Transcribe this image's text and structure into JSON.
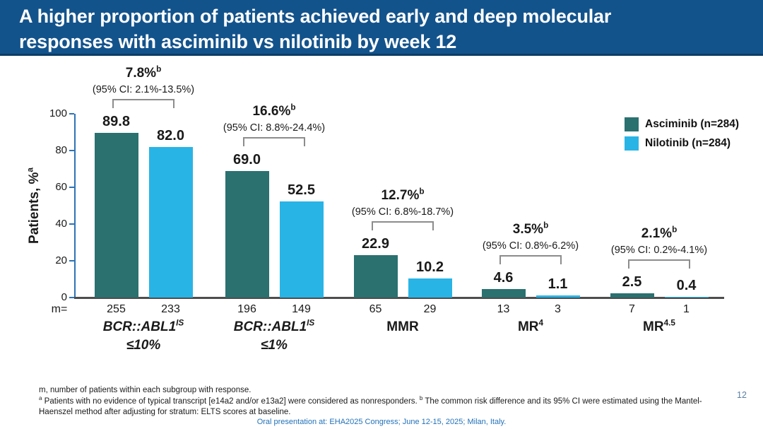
{
  "title": {
    "line1": "A higher proportion of patients achieved early and deep molecular",
    "line2": "responses with asciminib vs nilotinib by week 12"
  },
  "chart_data": {
    "type": "bar",
    "ylabel": "Patients, %",
    "ylabel_sup": "a",
    "ylim": [
      0,
      100
    ],
    "yticks": [
      0,
      20,
      40,
      60,
      80,
      100
    ],
    "grid": false,
    "legend_position": "top-right",
    "m_row_label": "m=",
    "categories": [
      {
        "line1": "BCR::ABL1",
        "line1_sup": "IS",
        "line2": "≤10%",
        "italic": true
      },
      {
        "line1": "BCR::ABL1",
        "line1_sup": "IS",
        "line2": "≤1%",
        "italic": true
      },
      {
        "line1": "MMR"
      },
      {
        "line1": "MR",
        "line1_sup": "4"
      },
      {
        "line1": "MR",
        "line1_sup": "4.5"
      }
    ],
    "series": [
      {
        "name": "Asciminib (n=284)",
        "color": "#2A7170",
        "values": [
          89.8,
          69.0,
          22.9,
          4.6,
          2.5
        ],
        "value_labels": [
          "89.8",
          "69.0",
          "22.9",
          "4.6",
          "2.5"
        ],
        "m": [
          "255",
          "196",
          "65",
          "13",
          "7"
        ]
      },
      {
        "name": "Nilotinib (n=284)",
        "color": "#29B4E6",
        "values": [
          82.0,
          52.5,
          10.2,
          1.1,
          0.4
        ],
        "value_labels": [
          "82.0",
          "52.5",
          "10.2",
          "1.1",
          "0.4"
        ],
        "m": [
          "233",
          "149",
          "29",
          "3",
          "1"
        ]
      }
    ],
    "differences": [
      {
        "value": "7.8%",
        "sup": "b",
        "ci": "(95% CI: 2.1%-13.5%)"
      },
      {
        "value": "16.6%",
        "sup": "b",
        "ci": "(95% CI: 8.8%-24.4%)"
      },
      {
        "value": "12.7%",
        "sup": "b",
        "ci": "(95% CI: 6.8%-18.7%)"
      },
      {
        "value": "3.5%",
        "sup": "b",
        "ci": "(95% CI: 0.8%-6.2%)"
      },
      {
        "value": "2.1%",
        "sup": "b",
        "ci": "(95% CI: 0.2%-4.1%)"
      }
    ]
  },
  "footnotes": {
    "line1": "m, number of patients within each subgroup with response.",
    "segments": [
      {
        "sup": "a"
      },
      {
        "text": " Patients with no evidence of typical transcript [e14a2 and/or e13a2] were considered as nonresponders. "
      },
      {
        "sup": "b"
      },
      {
        "text": " The common risk difference and its 95% CI were estimated using the Mantel-Haenszel method after adjusting for stratum: ELTS scores at baseline."
      }
    ]
  },
  "footer": {
    "presentation": "Oral presentation at: EHA2025 Congress; June 12-15, 2025; Milan, Italy.",
    "page_number": "12"
  },
  "colors": {
    "title_bg": "#13538C",
    "title_text": "#FFFFFF",
    "asciminib": "#2A7170",
    "nilotinib": "#29B4E6",
    "y_axis": "#2E74B5",
    "x_axis": "#4D4D4D",
    "bracket": "#8C8C8C",
    "footer_blue": "#2272B9"
  }
}
